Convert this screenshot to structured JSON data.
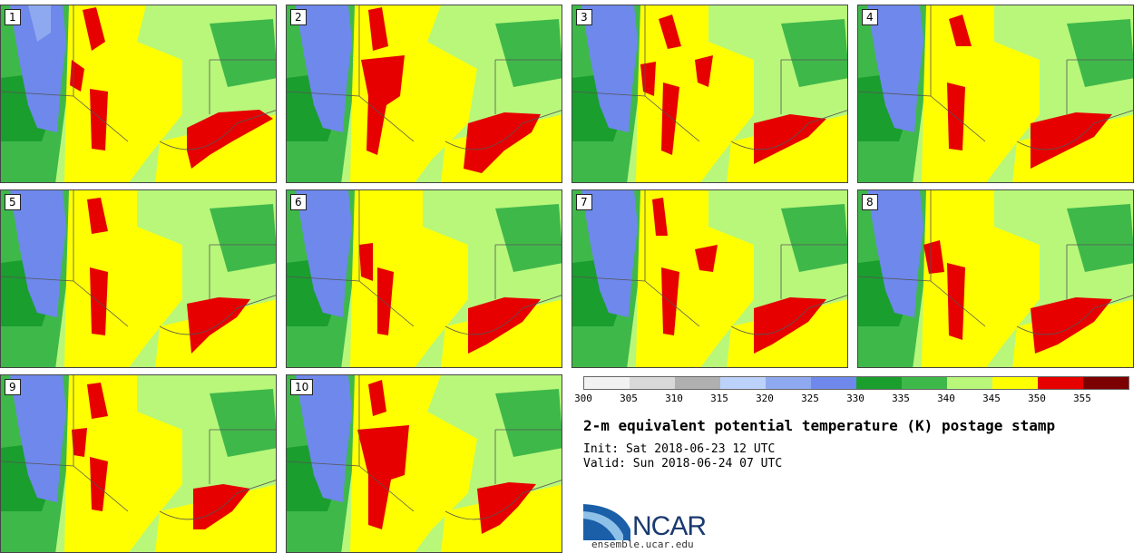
{
  "panels": [
    "1",
    "2",
    "3",
    "4",
    "5",
    "6",
    "7",
    "8",
    "9",
    "10"
  ],
  "legend": {
    "ticks": [
      "300",
      "305",
      "310",
      "315",
      "320",
      "325",
      "330",
      "335",
      "340",
      "345",
      "350",
      "355"
    ],
    "colors": [
      "#f2f2f2",
      "#d9d9d9",
      "#b0b0b0",
      "#bcd2fa",
      "#8fa9f0",
      "#6e88ec",
      "#1a9e2e",
      "#3fb84a",
      "#b8f77a",
      "#ffff00",
      "#e60000",
      "#7d0000"
    ]
  },
  "title": "2-m equivalent potential temperature (K) postage stamp",
  "init": "Init: Sat 2018-06-23 12 UTC",
  "valid": "Valid: Sun 2018-06-24 07 UTC",
  "logo_text": "NCAR",
  "url": "ensemble.ucar.edu"
}
